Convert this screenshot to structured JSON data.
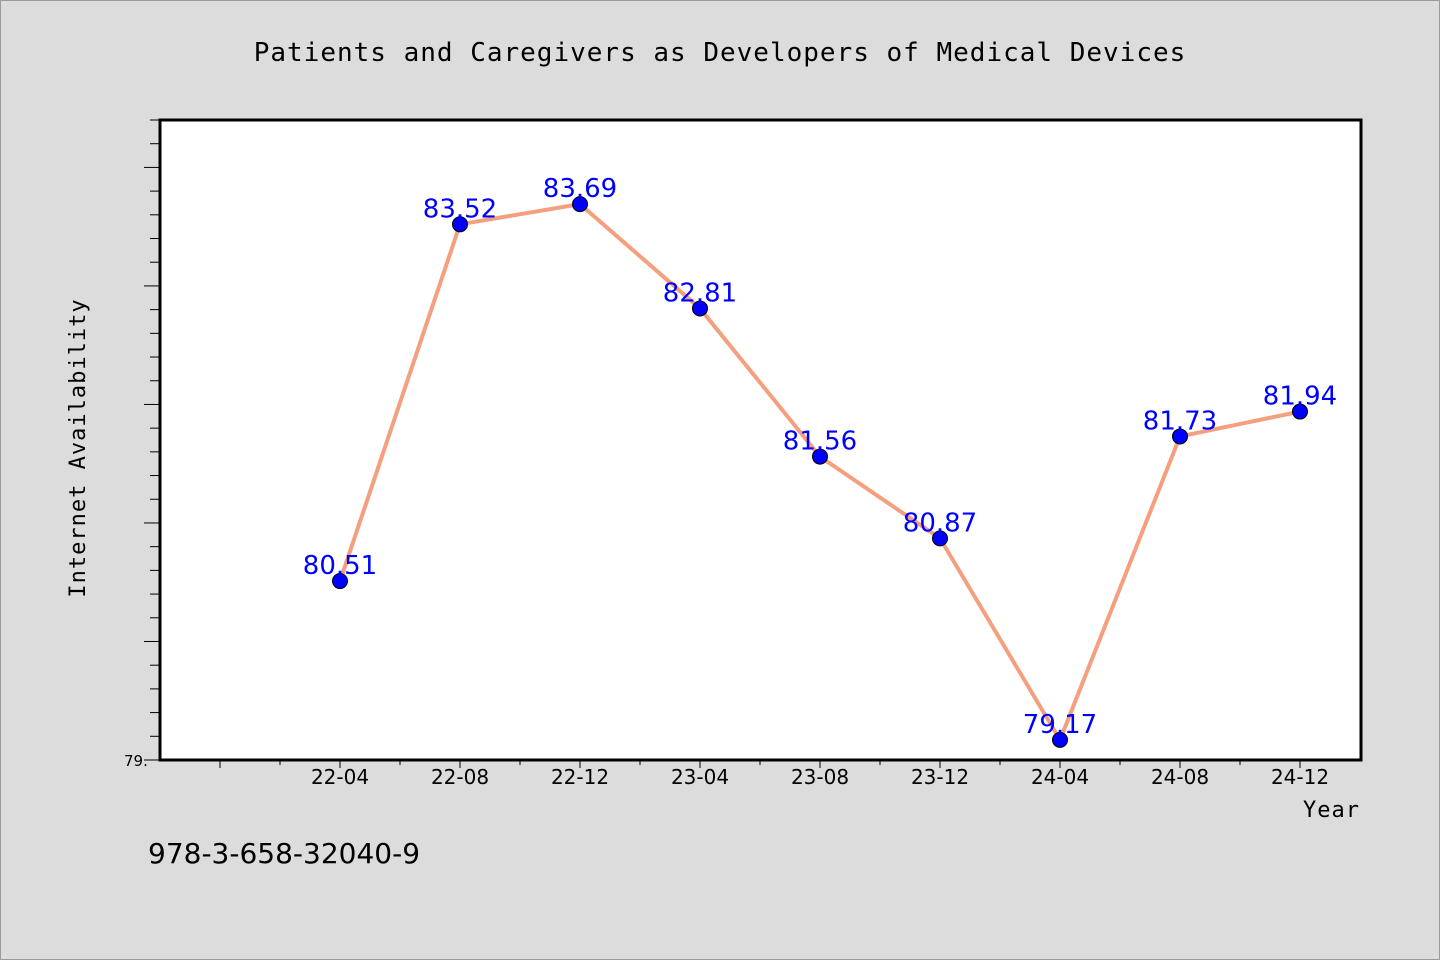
{
  "chart_data": {
    "type": "line",
    "title": "Patients and Caregivers as Developers of Medical Devices",
    "xlabel": "Year",
    "ylabel": "Internet Availability",
    "categories": [
      "22-04",
      "22-08",
      "22-12",
      "23-04",
      "23-08",
      "23-12",
      "24-04",
      "24-08",
      "24-12"
    ],
    "series": [
      {
        "values": [
          80.51,
          83.52,
          83.69,
          82.81,
          81.56,
          80.87,
          79.17,
          81.73,
          81.94
        ],
        "labels": [
          "80.51",
          "83.52",
          "83.69",
          "82.81",
          "81.56",
          "80.87",
          "79.17",
          "81.73",
          "81.94"
        ]
      }
    ],
    "ylim": [
      79.0,
      84.4
    ],
    "y_min_tick_label": "79.",
    "grid": false,
    "legend": "none",
    "line_color": "#f4a07e",
    "marker_color": "#0000ff",
    "label_color": "#0000ff"
  },
  "footer": {
    "isbn": "978-3-658-32040-9"
  }
}
